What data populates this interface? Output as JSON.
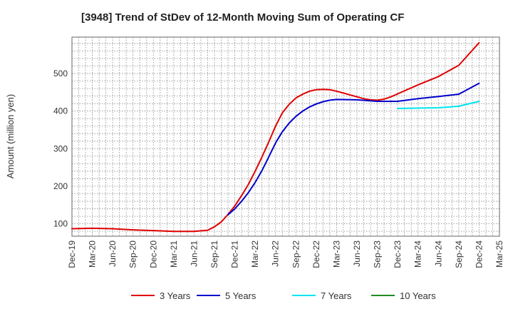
{
  "chart_data": {
    "type": "line",
    "title": "[3948]  Trend of StDev of 12-Month Moving Sum of Operating CF",
    "xlabel": "",
    "ylabel": "Amount (million yen)",
    "x_ticks": [
      "Dec-19",
      "Mar-20",
      "Jun-20",
      "Sep-20",
      "Dec-20",
      "Mar-21",
      "Jun-21",
      "Sep-21",
      "Dec-21",
      "Mar-22",
      "Jun-22",
      "Sep-22",
      "Dec-22",
      "Mar-23",
      "Jun-23",
      "Sep-23",
      "Dec-23",
      "Mar-24",
      "Jun-24",
      "Sep-24",
      "Dec-24",
      "Mar-25"
    ],
    "y_ticks": [
      100,
      200,
      300,
      400,
      500
    ],
    "ylim": [
      67,
      597
    ],
    "grid": true,
    "legend_position": "bottom",
    "series": [
      {
        "name": "3 Years",
        "color": "#e00000",
        "values": [
          [
            "Dec-19",
            87
          ],
          [
            "Mar-20",
            88
          ],
          [
            "Jun-20",
            87
          ],
          [
            "Sep-20",
            84
          ],
          [
            "Dec-20",
            82
          ],
          [
            "Mar-21",
            80
          ],
          [
            "Jun-21",
            80
          ],
          [
            "Aug-21",
            83
          ],
          [
            "Sep-21",
            92
          ],
          [
            "Oct-21",
            105
          ],
          [
            "Nov-21",
            125
          ],
          [
            "Dec-21",
            148
          ],
          [
            "Jan-22",
            175
          ],
          [
            "Feb-22",
            205
          ],
          [
            "Mar-22",
            240
          ],
          [
            "Apr-22",
            278
          ],
          [
            "May-22",
            318
          ],
          [
            "Jun-22",
            360
          ],
          [
            "Jul-22",
            395
          ],
          [
            "Aug-22",
            418
          ],
          [
            "Sep-22",
            435
          ],
          [
            "Oct-22",
            445
          ],
          [
            "Nov-22",
            453
          ],
          [
            "Dec-22",
            457
          ],
          [
            "Jan-23",
            458
          ],
          [
            "Feb-23",
            457
          ],
          [
            "Mar-23",
            453
          ],
          [
            "Apr-23",
            448
          ],
          [
            "May-23",
            443
          ],
          [
            "Jun-23",
            438
          ],
          [
            "Jul-23",
            433
          ],
          [
            "Aug-23",
            430
          ],
          [
            "Sep-23",
            429
          ],
          [
            "Oct-23",
            432
          ],
          [
            "Nov-23",
            438
          ],
          [
            "Dec-23",
            446
          ],
          [
            "Mar-24",
            470
          ],
          [
            "Jun-24",
            492
          ],
          [
            "Sep-24",
            522
          ],
          [
            "Dec-24",
            582
          ]
        ]
      },
      {
        "name": "5 Years",
        "color": "#0000cc",
        "values": [
          [
            "Nov-21",
            124
          ],
          [
            "Dec-21",
            140
          ],
          [
            "Jan-22",
            160
          ],
          [
            "Feb-22",
            183
          ],
          [
            "Mar-22",
            210
          ],
          [
            "Apr-22",
            242
          ],
          [
            "May-22",
            278
          ],
          [
            "Jun-22",
            315
          ],
          [
            "Jul-22",
            345
          ],
          [
            "Aug-22",
            368
          ],
          [
            "Sep-22",
            386
          ],
          [
            "Oct-22",
            400
          ],
          [
            "Nov-22",
            411
          ],
          [
            "Dec-22",
            419
          ],
          [
            "Jan-23",
            425
          ],
          [
            "Feb-23",
            429
          ],
          [
            "Mar-23",
            431
          ],
          [
            "Jun-23",
            430
          ],
          [
            "Sep-23",
            426
          ],
          [
            "Dec-23",
            426
          ],
          [
            "Mar-24",
            433
          ],
          [
            "Jun-24",
            439
          ],
          [
            "Sep-24",
            445
          ],
          [
            "Dec-24",
            474
          ]
        ]
      },
      {
        "name": "7 Years",
        "color": "#00e5ee",
        "values": [
          [
            "Dec-23",
            407
          ],
          [
            "Mar-24",
            408
          ],
          [
            "Jun-24",
            409
          ],
          [
            "Sep-24",
            413
          ],
          [
            "Dec-24",
            426
          ]
        ]
      },
      {
        "name": "10 Years",
        "color": "#228b22",
        "values": []
      }
    ]
  }
}
